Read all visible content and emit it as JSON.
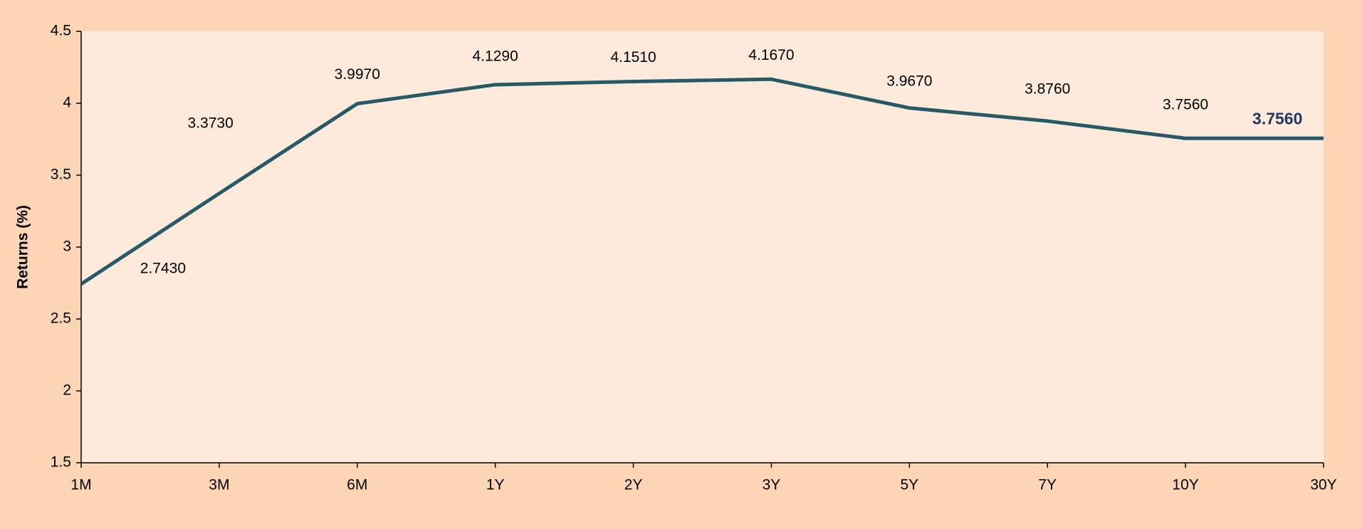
{
  "chart_data": {
    "type": "line",
    "y_label": "Returns (%)",
    "categories": [
      "1M",
      "3M",
      "6M",
      "1Y",
      "2Y",
      "3Y",
      "5Y",
      "7Y",
      "10Y",
      "30Y"
    ],
    "series": [
      {
        "color": "#265a68",
        "values": [
          2.743,
          3.373,
          3.997,
          4.129,
          4.151,
          4.167,
          3.967,
          3.876,
          3.756,
          3.756
        ],
        "value_labels": [
          "2.7430",
          "3.3730",
          "3.9970",
          "4.1290",
          "4.1510",
          "4.1670",
          "3.9670",
          "3.8760",
          "3.7560",
          "3.7560"
        ]
      }
    ],
    "ylim": [
      1.5,
      4.5
    ],
    "yticks": [
      1.5,
      2,
      2.5,
      3,
      3.5,
      4,
      4.5
    ]
  }
}
